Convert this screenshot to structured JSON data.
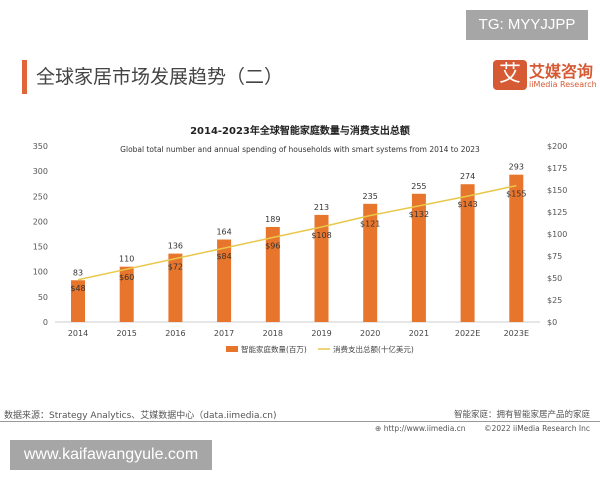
{
  "watermark_top": "TG: MYYJJPP",
  "watermark_bottom": "www.kaifawangyule.com",
  "page_title": "全球家居市场发展趋势（二）",
  "logo": {
    "mark": "艾",
    "cn": "艾媒咨询",
    "en": "iiMedia Research"
  },
  "footer": {
    "source": "数据来源：Strategy Analytics、艾媒数据中心（data.iimedia.cn)",
    "note": "智能家庭：拥有智能家居产品的家庭",
    "url": "http://www.iimedia.cn",
    "copyright": "©2022  iiMedia Research  Inc"
  },
  "colors": {
    "bar": "#e8752c",
    "line": "#e8c84a",
    "accent": "#e0653a"
  },
  "chart_data": {
    "type": "bar+line",
    "title": "2014-2023年全球智能家庭数量与消费支出总额",
    "subtitle": "Global total number and  annual spending of households with smart systems from 2014 to 2023",
    "categories": [
      "2014",
      "2015",
      "2016",
      "2017",
      "2018",
      "2019",
      "2020",
      "2021",
      "2022E",
      "2023E"
    ],
    "series": [
      {
        "name": "智能家庭数量(百万)",
        "type": "bar",
        "axis": "left",
        "values": [
          83,
          110,
          136,
          164,
          189,
          213,
          235,
          255,
          274,
          293
        ]
      },
      {
        "name": "消费支出总额(十亿美元)",
        "type": "line",
        "axis": "right",
        "values": [
          48,
          60,
          72,
          84,
          96,
          108,
          121,
          132,
          143,
          155
        ]
      }
    ],
    "y_left": {
      "range": [
        0,
        350
      ],
      "ticks": [
        "0",
        "50",
        "100",
        "150",
        "200",
        "250",
        "300",
        "350"
      ]
    },
    "y_right": {
      "range": [
        0,
        200
      ],
      "ticks": [
        "$0",
        "$25",
        "$50",
        "$75",
        "$100",
        "$125",
        "$150",
        "$175",
        "$200"
      ]
    },
    "legend": "bottom",
    "grid": false
  }
}
